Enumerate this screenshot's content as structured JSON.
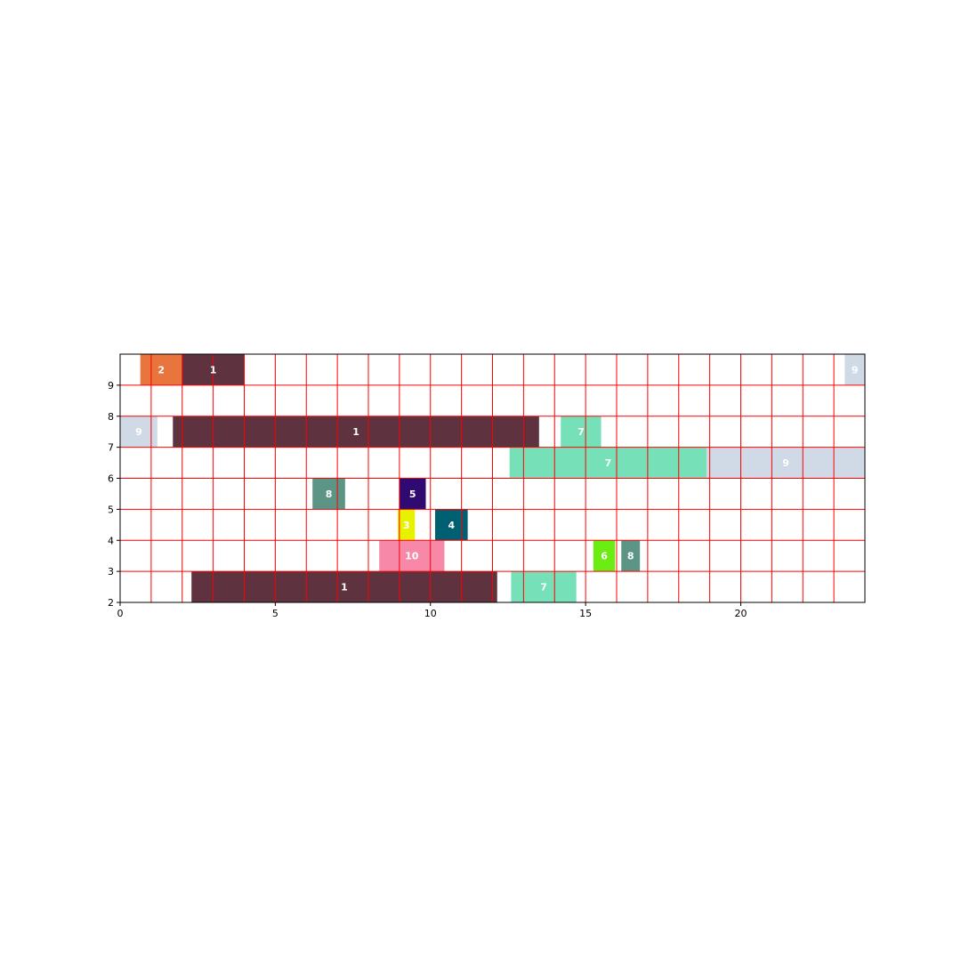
{
  "chart_data": {
    "type": "bar",
    "orientation": "horizontal-broken",
    "title": "",
    "xlabel": "",
    "ylabel": "",
    "xlim": [
      0,
      24
    ],
    "ylim": [
      2,
      10
    ],
    "xticks": [
      0,
      5,
      10,
      15,
      20
    ],
    "yticks": [
      2,
      3,
      4,
      5,
      6,
      7,
      8,
      9
    ],
    "grid": true,
    "grid_color": "#ff0000",
    "grid_step": 1,
    "bars": [
      {
        "label": "2",
        "x0": 0.65,
        "x1": 2.0,
        "y0": 9,
        "y1": 10,
        "color": "#e8743e"
      },
      {
        "label": "1",
        "x0": 2.0,
        "x1": 4.0,
        "y0": 9,
        "y1": 10,
        "color": "#5e323e"
      },
      {
        "label": "9",
        "x0": 23.35,
        "x1": 24.0,
        "y0": 9,
        "y1": 10,
        "color": "#d0d9e6"
      },
      {
        "label": "9",
        "x0": 0.0,
        "x1": 1.2,
        "y0": 7,
        "y1": 8,
        "color": "#d0d9e6"
      },
      {
        "label": "1",
        "x0": 1.7,
        "x1": 13.5,
        "y0": 7,
        "y1": 8,
        "color": "#5e323e"
      },
      {
        "label": "7",
        "x0": 14.2,
        "x1": 15.5,
        "y0": 7,
        "y1": 8,
        "color": "#76e0b8"
      },
      {
        "label": "7",
        "x0": 12.55,
        "x1": 18.9,
        "y0": 6,
        "y1": 7,
        "color": "#76e0b8"
      },
      {
        "label": "9",
        "x0": 18.9,
        "x1": 24.0,
        "y0": 6,
        "y1": 7,
        "color": "#d0d9e6"
      },
      {
        "label": "8",
        "x0": 6.2,
        "x1": 7.25,
        "y0": 5,
        "y1": 6,
        "color": "#5c9585"
      },
      {
        "label": "5",
        "x0": 9.0,
        "x1": 9.85,
        "y0": 5,
        "y1": 6,
        "color": "#300a70"
      },
      {
        "label": "3",
        "x0": 8.95,
        "x1": 9.5,
        "y0": 4,
        "y1": 5,
        "color": "#e6f200"
      },
      {
        "label": "4",
        "x0": 10.15,
        "x1": 11.2,
        "y0": 4,
        "y1": 5,
        "color": "#005f70"
      },
      {
        "label": "10",
        "x0": 8.35,
        "x1": 10.45,
        "y0": 3,
        "y1": 4,
        "color": "#f788a8"
      },
      {
        "label": "6",
        "x0": 15.25,
        "x1": 15.95,
        "y0": 3,
        "y1": 4,
        "color": "#6bec12"
      },
      {
        "label": "8",
        "x0": 16.15,
        "x1": 16.75,
        "y0": 3,
        "y1": 4,
        "color": "#5c9585"
      },
      {
        "label": "1",
        "x0": 2.3,
        "x1": 12.15,
        "y0": 2,
        "y1": 3,
        "color": "#5e323e"
      },
      {
        "label": "7",
        "x0": 12.6,
        "x1": 14.7,
        "y0": 2,
        "y1": 3,
        "color": "#76e0b8"
      }
    ]
  }
}
